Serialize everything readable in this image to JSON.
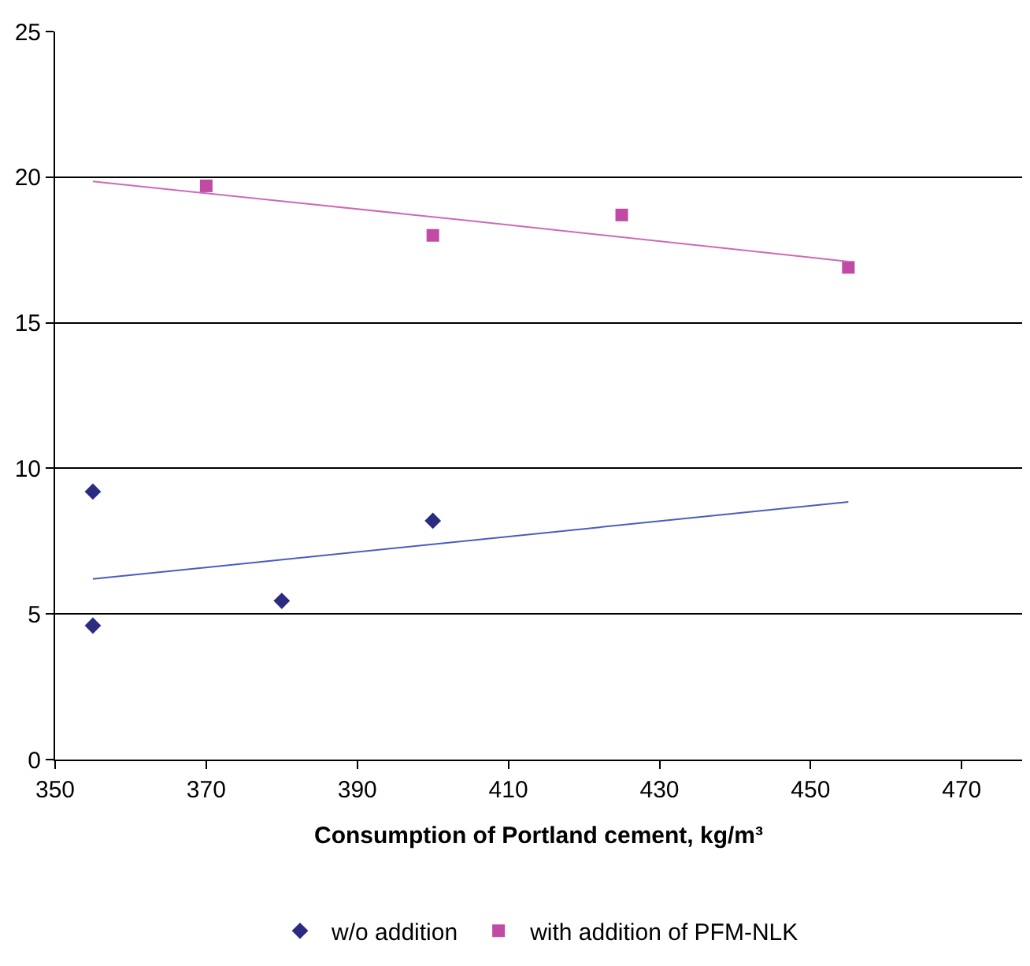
{
  "chart_data": {
    "type": "scatter",
    "xlabel": "Consumption of Portland cement, kg/m³",
    "xlim": [
      350,
      478
    ],
    "xticks": [
      350,
      370,
      390,
      410,
      430,
      450,
      470
    ],
    "ylim": [
      0,
      25
    ],
    "yticks": [
      0,
      5,
      10,
      15,
      20,
      25
    ],
    "grid": "y",
    "legend": "bottom",
    "series": [
      {
        "name": "w/o addition",
        "color": "#2b2b7f",
        "marker": "diamond",
        "x": [
          355,
          355,
          380,
          400
        ],
        "values": [
          9.2,
          4.6,
          5.45,
          8.2
        ]
      },
      {
        "name": "with addition of PFM-NLK",
        "color": "#c04aa4",
        "marker": "square",
        "x": [
          370,
          400,
          425,
          455
        ],
        "values": [
          19.7,
          18.0,
          18.7,
          16.9
        ]
      },
      {
        "type": "line",
        "color": "#4a5cc0",
        "x": [
          355,
          455
        ],
        "values": [
          6.2,
          8.85
        ]
      },
      {
        "type": "line",
        "color": "#cc6ab8",
        "x": [
          355,
          405,
          455
        ],
        "values": [
          19.85,
          18.5,
          17.1
        ]
      }
    ]
  }
}
